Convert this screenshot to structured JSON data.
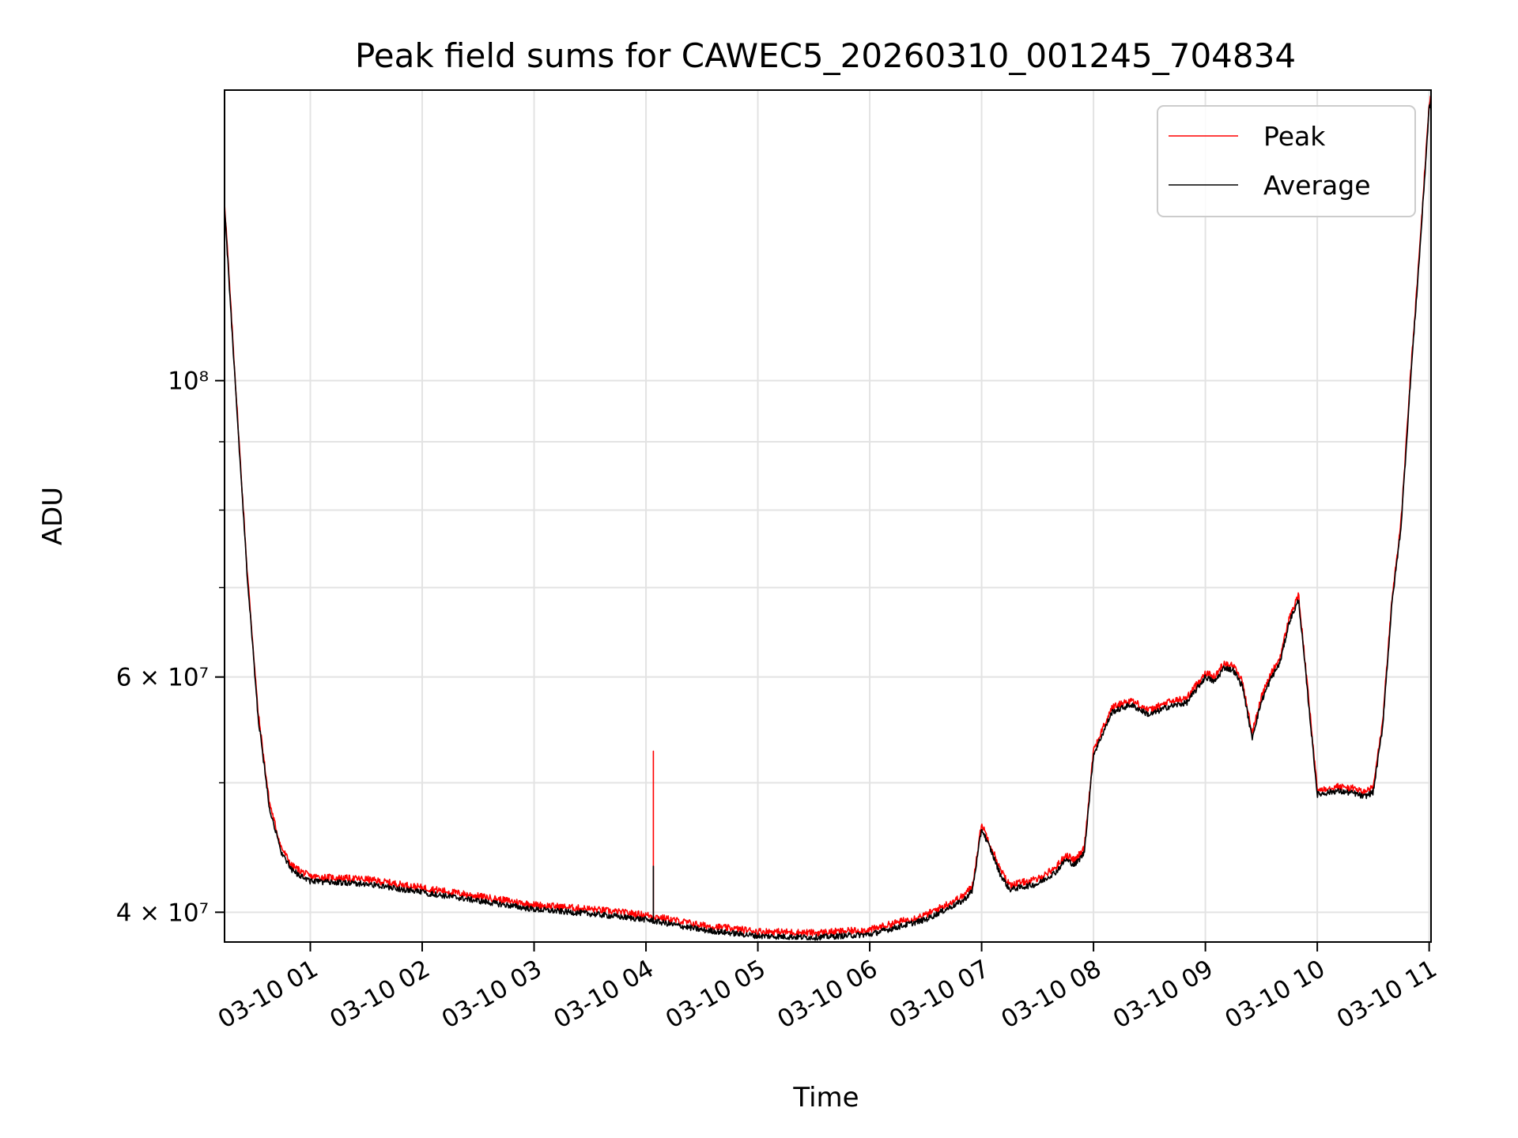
{
  "chart_data": {
    "type": "line",
    "title": "Peak field sums for CAWEC5_20260310_001245_704834",
    "xlabel": "Time",
    "ylabel": "ADU",
    "yscale": "log",
    "ylim": [
      38000000,
      165000000
    ],
    "xlim": [
      "03-10 00:14",
      "03-10 11:01"
    ],
    "grid": true,
    "legend_position": "top-right",
    "x_ticks": [
      "03-10 01",
      "03-10 02",
      "03-10 03",
      "03-10 04",
      "03-10 05",
      "03-10 06",
      "03-10 07",
      "03-10 08",
      "03-10 09",
      "03-10 10",
      "03-10 11"
    ],
    "y_ticks": [
      {
        "value": 40000000,
        "label": "4 × 10⁷"
      },
      {
        "value": 60000000,
        "label": "6 × 10⁷"
      },
      {
        "value": 100000000,
        "label": "10⁸"
      }
    ],
    "y_minor_ticks": [
      50000000,
      70000000,
      80000000,
      90000000
    ],
    "series": [
      {
        "name": "Peak",
        "color": "#ff0000",
        "noise": 0.006,
        "offset": 1.008,
        "spike": {
          "x": "03-10 04:04",
          "y": 52800000
        }
      },
      {
        "name": "Average",
        "color": "#000000",
        "noise": 0.005,
        "offset": 1.0,
        "spike": {
          "x": "03-10 04:04",
          "y": 43300000
        }
      }
    ],
    "x": [
      "03-10 00:14",
      "03-10 00:20",
      "03-10 00:26",
      "03-10 00:32",
      "03-10 00:38",
      "03-10 00:44",
      "03-10 00:50",
      "03-10 01:00",
      "03-10 01:30",
      "03-10 02:00",
      "03-10 02:30",
      "03-10 03:00",
      "03-10 03:30",
      "03-10 04:00",
      "03-10 04:30",
      "03-10 05:00",
      "03-10 05:30",
      "03-10 06:00",
      "03-10 06:30",
      "03-10 06:50",
      "03-10 06:55",
      "03-10 07:00",
      "03-10 07:05",
      "03-10 07:10",
      "03-10 07:15",
      "03-10 07:30",
      "03-10 07:40",
      "03-10 07:45",
      "03-10 07:50",
      "03-10 07:55",
      "03-10 08:00",
      "03-10 08:10",
      "03-10 08:20",
      "03-10 08:30",
      "03-10 08:40",
      "03-10 08:50",
      "03-10 09:00",
      "03-10 09:05",
      "03-10 09:10",
      "03-10 09:15",
      "03-10 09:20",
      "03-10 09:25",
      "03-10 09:30",
      "03-10 09:35",
      "03-10 09:40",
      "03-10 09:45",
      "03-10 09:50",
      "03-10 09:55",
      "03-10 10:00",
      "03-10 10:10",
      "03-10 10:20",
      "03-10 10:25",
      "03-10 10:30",
      "03-10 10:35",
      "03-10 10:40",
      "03-10 10:45",
      "03-10 10:50",
      "03-10 10:55",
      "03-10 11:00",
      "03-10 11:01"
    ],
    "values": [
      135000000,
      98000000,
      72000000,
      56000000,
      48000000,
      44500000,
      43000000,
      42200000,
      42000000,
      41400000,
      40800000,
      40200000,
      39900000,
      39500000,
      38800000,
      38400000,
      38300000,
      38500000,
      39500000,
      40800000,
      41500000,
      46200000,
      44500000,
      42700000,
      41600000,
      42000000,
      42900000,
      43800000,
      43400000,
      44300000,
      52500000,
      56500000,
      57200000,
      56200000,
      57000000,
      57400000,
      60000000,
      59500000,
      61000000,
      60700000,
      59000000,
      54000000,
      57500000,
      59800000,
      61500000,
      66000000,
      68500000,
      58000000,
      49000000,
      49300000,
      49100000,
      48800000,
      49200000,
      55000000,
      68000000,
      78000000,
      100000000,
      125000000,
      160000000,
      162000000
    ]
  }
}
